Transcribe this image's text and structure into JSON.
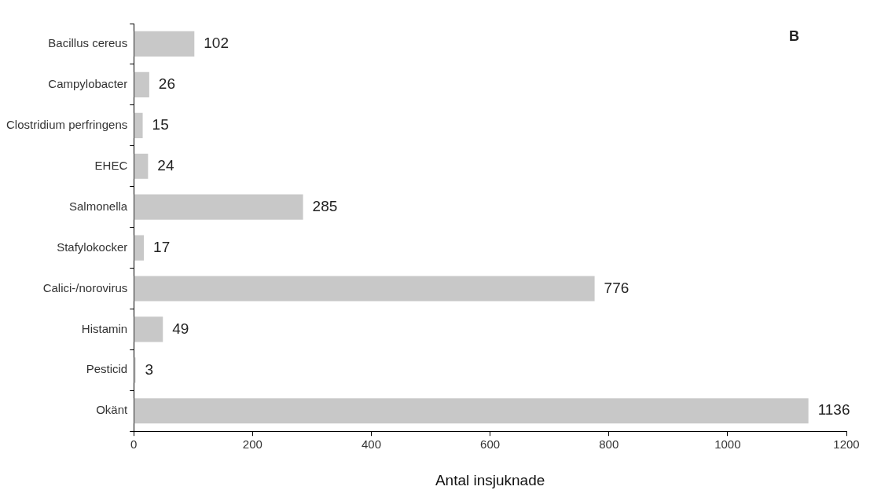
{
  "chart_data": {
    "type": "bar",
    "orientation": "horizontal",
    "xlabel": "Antal insjuknade",
    "annotations": [
      "B"
    ],
    "categories": [
      "Bacillus cereus",
      "Campylobacter",
      "Clostridium perfringens",
      "EHEC",
      "Salmonella",
      "Stafylokocker",
      "Calici-/norovirus",
      "Histamin",
      "Pesticid",
      "Okänt"
    ],
    "values": [
      102,
      26,
      15,
      24,
      285,
      17,
      776,
      49,
      3,
      1136
    ],
    "color": "#c8c8c8",
    "xlim": [
      0,
      1200
    ],
    "xticks": [
      0,
      200,
      400,
      600,
      800,
      1000,
      1200
    ],
    "data_labels": true,
    "grid": false,
    "legend": false
  }
}
